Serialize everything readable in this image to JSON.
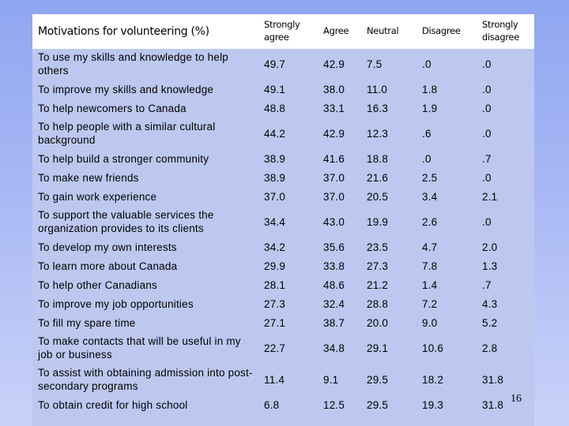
{
  "table": {
    "headers": [
      "Motivations for volunteering (%)",
      "Strongly agree",
      "Agree",
      "Neutral",
      "Disagree",
      "Strongly disagree"
    ],
    "rows": [
      [
        "To use my skills and knowledge to help others",
        "49.7",
        "42.9",
        "7.5",
        ".0",
        ".0"
      ],
      [
        "To improve my skills and knowledge",
        "49.1",
        "38.0",
        "11.0",
        "1.8",
        ".0"
      ],
      [
        "To help newcomers to Canada",
        "48.8",
        "33.1",
        "16.3",
        "1.9",
        ".0"
      ],
      [
        "To help people with a similar cultural background",
        "44.2",
        "42.9",
        "12.3",
        ".6",
        ".0"
      ],
      [
        "To help build a stronger community",
        "38.9",
        "41.6",
        "18.8",
        ".0",
        ".7"
      ],
      [
        "To make new friends",
        "38.9",
        "37.0",
        "21.6",
        "2.5",
        ".0"
      ],
      [
        "To gain work experience",
        "37.0",
        "37.0",
        "20.5",
        "3.4",
        "2.1"
      ],
      [
        "To support the valuable services the organization provides to its clients",
        "34.4",
        "43.0",
        "19.9",
        "2.6",
        ".0"
      ],
      [
        "To develop my own interests",
        "34.2",
        "35.6",
        "23.5",
        "4.7",
        "2.0"
      ],
      [
        "To learn more about Canada",
        "29.9",
        "33.8",
        "27.3",
        "7.8",
        "1.3"
      ],
      [
        "To help other Canadians",
        "28.1",
        "48.6",
        "21.2",
        "1.4",
        ".7"
      ],
      [
        "To improve my job opportunities",
        "27.3",
        "32.4",
        "28.8",
        "7.2",
        "4.3"
      ],
      [
        "To fill my spare time",
        "27.1",
        "38.7",
        "20.0",
        "9.0",
        "5.2"
      ],
      [
        "To make contacts that will be useful in my job or business",
        "22.7",
        "34.8",
        "29.1",
        "10.6",
        "2.8"
      ],
      [
        "To assist with obtaining admission into post-secondary programs",
        "11.4",
        "9.1",
        "29.5",
        "18.2",
        "31.8"
      ],
      [
        "To obtain credit for high school",
        "6.8",
        "12.5",
        "29.5",
        "19.3",
        "31.8"
      ]
    ]
  },
  "page_number": "16"
}
